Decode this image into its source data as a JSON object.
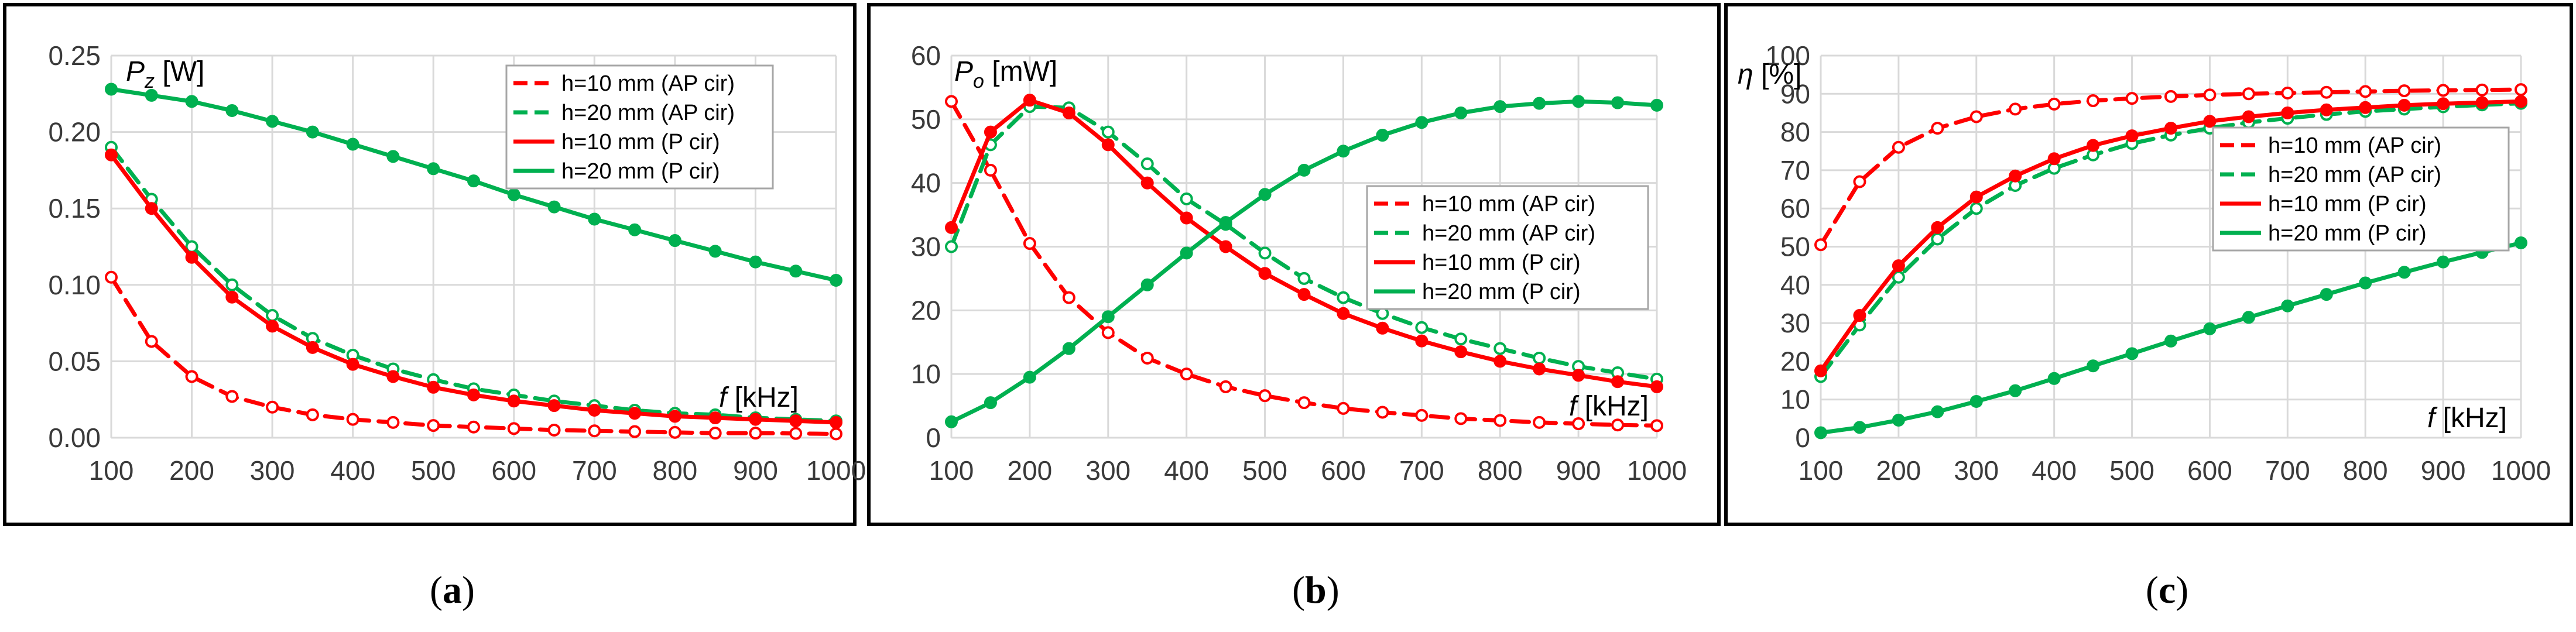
{
  "chart_data": [
    {
      "type": "line",
      "panel_label": "(a)",
      "ylabel_symbol": "P",
      "ylabel_sub": "z",
      "ylabel_unit": " [W]",
      "xlabel_symbol": "f",
      "xlabel_unit": " [kHz]",
      "xlim": [
        100,
        1000
      ],
      "ylim": [
        0,
        0.25
      ],
      "x_ticks": [
        "100",
        "200",
        "300",
        "400",
        "500",
        "600",
        "700",
        "800",
        "900",
        "1000"
      ],
      "y_ticks": [
        "0.00",
        "0.05",
        "0.10",
        "0.15",
        "0.20",
        "0.25"
      ],
      "legend_position": "top-right",
      "x": [
        100,
        150,
        200,
        250,
        300,
        350,
        400,
        450,
        500,
        550,
        600,
        650,
        700,
        750,
        800,
        850,
        900,
        950,
        1000
      ],
      "series": [
        {
          "name": "h=10 mm (AP cir)",
          "color": "#ff0000",
          "dashed": true,
          "marker": "open",
          "values": [
            0.105,
            0.063,
            0.04,
            0.027,
            0.02,
            0.015,
            0.012,
            0.01,
            0.008,
            0.007,
            0.006,
            0.005,
            0.0045,
            0.004,
            0.0035,
            0.003,
            0.003,
            0.0028,
            0.0025
          ]
        },
        {
          "name": "h=20 mm (AP cir)",
          "color": "#00b050",
          "dashed": true,
          "marker": "open",
          "values": [
            0.19,
            0.156,
            0.125,
            0.1,
            0.08,
            0.065,
            0.054,
            0.045,
            0.038,
            0.032,
            0.028,
            0.024,
            0.021,
            0.018,
            0.016,
            0.015,
            0.013,
            0.012,
            0.011
          ]
        },
        {
          "name": "h=10 mm (P cir)",
          "color": "#ff0000",
          "dashed": false,
          "marker": "filled",
          "values": [
            0.185,
            0.15,
            0.118,
            0.092,
            0.073,
            0.059,
            0.048,
            0.04,
            0.033,
            0.028,
            0.024,
            0.021,
            0.018,
            0.016,
            0.014,
            0.013,
            0.012,
            0.011,
            0.01
          ]
        },
        {
          "name": "h=20 mm (P cir)",
          "color": "#00b050",
          "dashed": false,
          "marker": "filled",
          "values": [
            0.228,
            0.224,
            0.22,
            0.214,
            0.207,
            0.2,
            0.192,
            0.184,
            0.176,
            0.168,
            0.159,
            0.151,
            0.143,
            0.136,
            0.129,
            0.122,
            0.115,
            0.109,
            0.103
          ]
        }
      ]
    },
    {
      "type": "line",
      "panel_label": "(b)",
      "ylabel_symbol": "P",
      "ylabel_sub": "o",
      "ylabel_unit": " [mW]",
      "xlabel_symbol": "f",
      "xlabel_unit": " [kHz]",
      "xlim": [
        100,
        1000
      ],
      "ylim": [
        0,
        60
      ],
      "x_ticks": [
        "100",
        "200",
        "300",
        "400",
        "500",
        "600",
        "700",
        "800",
        "900",
        "1000"
      ],
      "y_ticks": [
        "0",
        "10",
        "20",
        "30",
        "40",
        "50",
        "60"
      ],
      "legend_position": "middle-right",
      "x": [
        100,
        150,
        200,
        250,
        300,
        350,
        400,
        450,
        500,
        550,
        600,
        650,
        700,
        750,
        800,
        850,
        900,
        950,
        1000
      ],
      "series": [
        {
          "name": "h=10 mm (AP cir)",
          "color": "#ff0000",
          "dashed": true,
          "marker": "open",
          "values": [
            52.8,
            42,
            30.5,
            22,
            16.5,
            12.5,
            10,
            8,
            6.6,
            5.5,
            4.6,
            4,
            3.5,
            3,
            2.7,
            2.4,
            2.2,
            2,
            1.9
          ]
        },
        {
          "name": "h=20 mm (AP cir)",
          "color": "#00b050",
          "dashed": true,
          "marker": "open",
          "values": [
            30,
            46,
            52,
            51.8,
            48,
            43,
            37.5,
            33.5,
            29,
            25,
            22,
            19.5,
            17.3,
            15.5,
            14,
            12.5,
            11.2,
            10.2,
            9.2
          ]
        },
        {
          "name": "h=10 mm (P cir)",
          "color": "#ff0000",
          "dashed": false,
          "marker": "filled",
          "values": [
            33,
            48,
            53,
            51,
            46,
            40,
            34.5,
            30,
            25.8,
            22.5,
            19.5,
            17.2,
            15.2,
            13.5,
            12,
            10.8,
            9.8,
            8.8,
            8
          ]
        },
        {
          "name": "h=20 mm (P cir)",
          "color": "#00b050",
          "dashed": false,
          "marker": "filled",
          "values": [
            2.5,
            5.5,
            9.5,
            14,
            19,
            24,
            29,
            33.8,
            38.2,
            42,
            45,
            47.5,
            49.5,
            51,
            52,
            52.5,
            52.8,
            52.6,
            52.2
          ]
        }
      ]
    },
    {
      "type": "line",
      "panel_label": "(c)",
      "ylabel_symbol": "η",
      "ylabel_sub": "",
      "ylabel_unit": " [%]",
      "xlabel_symbol": "f",
      "xlabel_unit": " [kHz]",
      "xlim": [
        100,
        1000
      ],
      "ylim": [
        0,
        100
      ],
      "x_ticks": [
        "100",
        "200",
        "300",
        "400",
        "500",
        "600",
        "700",
        "800",
        "900",
        "1000"
      ],
      "y_ticks": [
        "0",
        "10",
        "20",
        "30",
        "40",
        "50",
        "60",
        "70",
        "80",
        "90",
        "100"
      ],
      "legend_position": "middle-right",
      "x": [
        100,
        150,
        200,
        250,
        300,
        350,
        400,
        450,
        500,
        550,
        600,
        650,
        700,
        750,
        800,
        850,
        900,
        950,
        1000
      ],
      "series": [
        {
          "name": "h=10 mm (AP cir)",
          "color": "#ff0000",
          "dashed": true,
          "marker": "open",
          "values": [
            50.5,
            67,
            76,
            81,
            84,
            86,
            87.3,
            88.2,
            88.8,
            89.3,
            89.7,
            90,
            90.2,
            90.4,
            90.6,
            90.8,
            90.9,
            91,
            91.1
          ]
        },
        {
          "name": "h=20 mm (AP cir)",
          "color": "#00b050",
          "dashed": true,
          "marker": "open",
          "values": [
            16,
            29.5,
            42,
            52,
            60,
            66,
            70.5,
            74,
            77,
            79.2,
            81,
            82.5,
            83.6,
            84.6,
            85.4,
            86,
            86.6,
            87.1,
            87.5
          ]
        },
        {
          "name": "h=10 mm (P cir)",
          "color": "#ff0000",
          "dashed": false,
          "marker": "filled",
          "values": [
            17.5,
            32,
            45,
            55,
            63,
            68.5,
            73,
            76.5,
            79,
            81,
            82.8,
            84,
            85,
            85.8,
            86.4,
            87,
            87.4,
            87.7,
            88
          ]
        },
        {
          "name": "h=20 mm (P cir)",
          "color": "#00b050",
          "dashed": false,
          "marker": "filled",
          "values": [
            1.3,
            2.7,
            4.6,
            6.8,
            9.5,
            12.3,
            15.5,
            18.8,
            22,
            25.3,
            28.5,
            31.5,
            34.5,
            37.5,
            40.5,
            43.3,
            46,
            48.5,
            51
          ]
        }
      ]
    }
  ]
}
